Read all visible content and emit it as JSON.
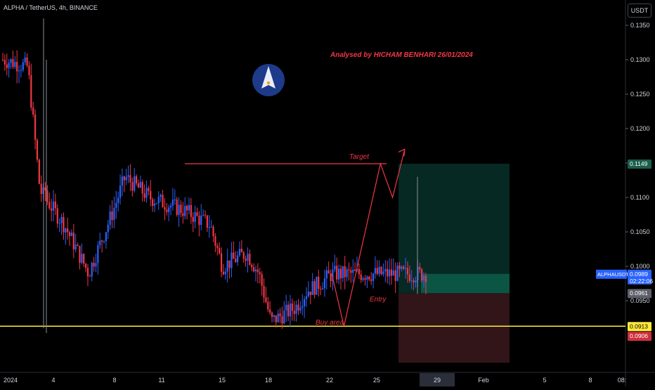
{
  "header": {
    "title": "ALPHA / TetherUS, 4h, BINANCE",
    "currency": "USDT"
  },
  "annotations": {
    "author": "Analysed by HICHAM BENHARI 26/01/2024",
    "target": "Target",
    "entry": "Entry",
    "buy_area": "Buy area"
  },
  "price_labels": {
    "target": "0.1149",
    "symbol": "ALPHAUSDT",
    "last_price": "0.0989",
    "countdown": "02:22:06",
    "entry": "0.0961",
    "buy_line": "0.0913",
    "stop": "0.0906"
  },
  "colors": {
    "up": "#2962ff",
    "down": "#f23645",
    "buy_line": "#ffeb3b",
    "annotation": "#f23645",
    "target_zone": "#0b4a3f",
    "stop_zone": "#3d1a1f",
    "badge_blue": "#2962ff",
    "badge_green": "#1b5e4a",
    "badge_gray": "#5d606b",
    "badge_red": "#cc2f3c",
    "badge_yellow": "#ffeb3b"
  },
  "chart_data": {
    "type": "candlestick",
    "title": "ALPHA / TetherUS, 4h, BINANCE",
    "y_axis": {
      "ticks": [
        "0.1350",
        "0.1300",
        "0.1250",
        "0.1200",
        "0.1150",
        "0.1100",
        "0.1050",
        "0.1000",
        "0.0950"
      ],
      "range": [
        0.0867,
        0.1375
      ]
    },
    "x_axis": {
      "ticks": [
        "2024",
        "4",
        "8",
        "11",
        "15",
        "18",
        "22",
        "25",
        "29",
        "Feb",
        "5",
        "8",
        "08:"
      ],
      "highlighted": "29"
    },
    "levels": {
      "target": 0.1149,
      "entry": 0.0961,
      "buy_line": 0.0913,
      "stop": 0.0906
    },
    "series_hint": [
      {
        "date": "2024-01-01",
        "price": 0.13
      },
      {
        "date": "2024-01-03",
        "price": 0.129
      },
      {
        "date": "2024-01-04",
        "price": 0.111
      },
      {
        "date": "2024-01-06",
        "price": 0.106
      },
      {
        "date": "2024-01-08",
        "price": 0.099
      },
      {
        "date": "2024-01-10",
        "price": 0.108
      },
      {
        "date": "2024-01-11",
        "price": 0.113
      },
      {
        "date": "2024-01-13",
        "price": 0.11
      },
      {
        "date": "2024-01-16",
        "price": 0.108
      },
      {
        "date": "2024-01-18",
        "price": 0.106
      },
      {
        "date": "2024-01-19",
        "price": 0.1
      },
      {
        "date": "2024-01-21",
        "price": 0.102
      },
      {
        "date": "2024-01-22",
        "price": 0.099
      },
      {
        "date": "2024-01-23",
        "price": 0.092
      },
      {
        "date": "2024-01-24",
        "price": 0.093
      },
      {
        "date": "2024-01-25",
        "price": 0.094
      },
      {
        "date": "2024-01-26",
        "price": 0.0965
      },
      {
        "date": "2024-01-27",
        "price": 0.0975
      },
      {
        "date": "2024-01-28",
        "price": 0.0989
      }
    ],
    "projection": [
      {
        "date": "2024-01-28",
        "price": 0.0989
      },
      {
        "date": "2024-01-29",
        "price": 0.0913
      },
      {
        "date": "2024-02-01",
        "price": 0.1149
      },
      {
        "date": "2024-02-02",
        "price": 0.11
      },
      {
        "date": "2024-02-03",
        "price": 0.117
      }
    ]
  }
}
